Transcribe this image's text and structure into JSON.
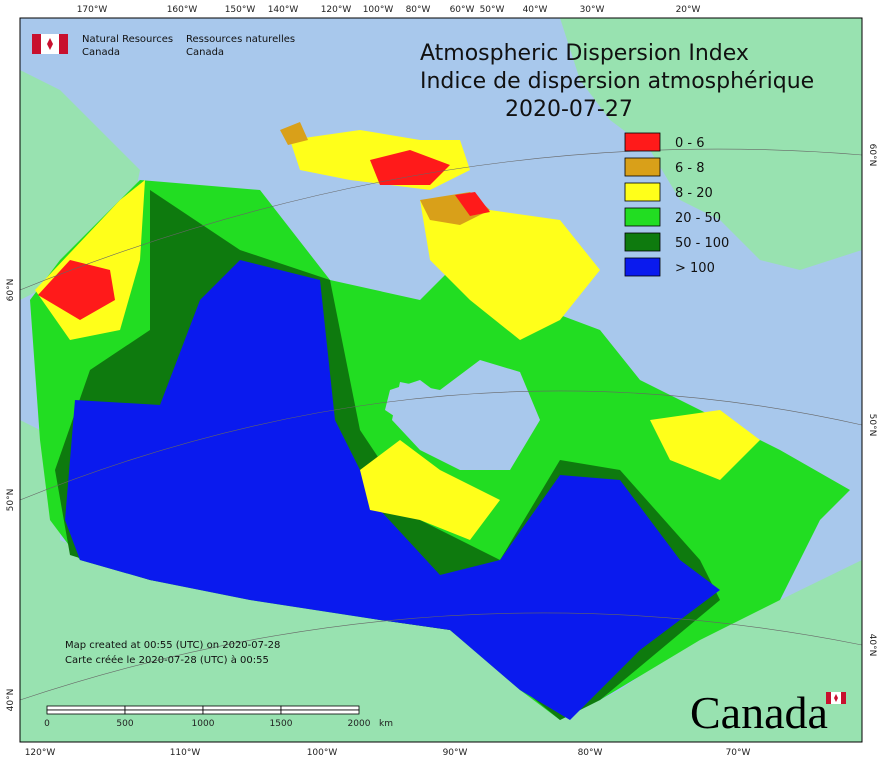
{
  "logo": {
    "en": [
      "Natural Resources",
      "Canada"
    ],
    "fr": [
      "Ressources naturelles",
      "Canada"
    ]
  },
  "title": {
    "en": "Atmospheric Dispersion Index",
    "fr": "Indice de dispersion atmosphérique",
    "date": "2020-07-27"
  },
  "legend": [
    {
      "label": "0 - 6",
      "color": "#ff1a1a"
    },
    {
      "label": "6 - 8",
      "color": "#d9a019"
    },
    {
      "label": "8 - 20",
      "color": "#ffff1a"
    },
    {
      "label": "20 - 50",
      "color": "#22dd22"
    },
    {
      "label": "50 - 100",
      "color": "#0e7a0e"
    },
    {
      "label": "> 100",
      "color": "#0a1aee"
    }
  ],
  "graticule": {
    "top": [
      "170°W",
      "160°W",
      "150°W",
      "140°W",
      "120°W",
      "100°W",
      "80°W",
      "60°W",
      "50°W",
      "40°W",
      "30°W",
      "20°W"
    ],
    "bottom": [
      "120°W",
      "110°W",
      "100°W",
      "90°W",
      "80°W",
      "70°W"
    ],
    "left": [
      "60°N",
      "50°N",
      "40°N"
    ],
    "right": [
      "60°N",
      "50°N",
      "40°N"
    ]
  },
  "footer": {
    "created_en": "Map created at 00:55 (UTC) on 2020-07-28",
    "created_fr": "Carte créée le 2020-07-28 (UTC) à 00:55"
  },
  "scale_bar": {
    "labels": [
      "0",
      "500",
      "1000",
      "1500",
      "2000"
    ],
    "unit": "km"
  },
  "wordmark": "Canada"
}
